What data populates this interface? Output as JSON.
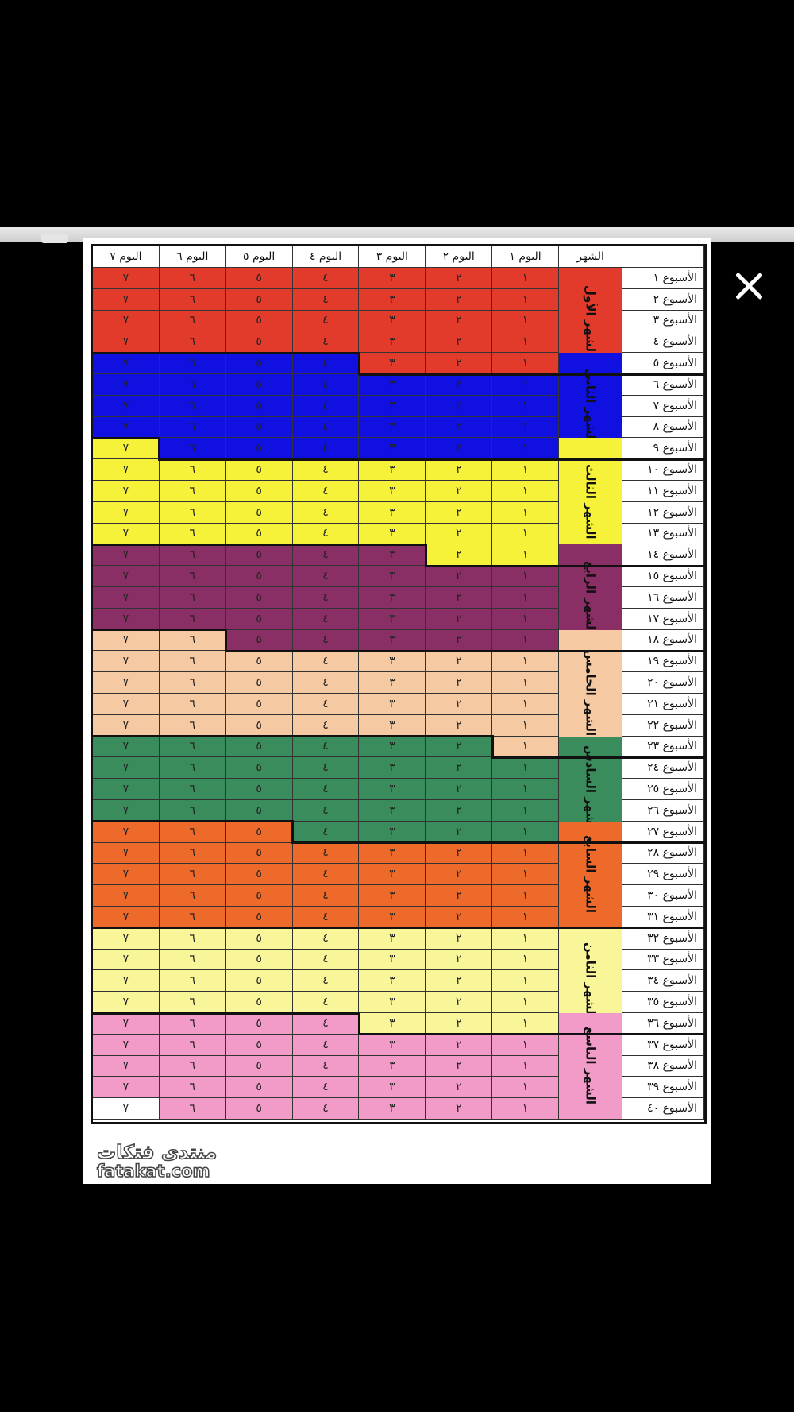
{
  "header": {
    "week_col": "",
    "month_col": "الشهر",
    "days": [
      "اليوم ١",
      "اليوم ٢",
      "اليوم ٣",
      "اليوم ٤",
      "اليوم ٥",
      "اليوم ٦",
      "اليوم ٧"
    ]
  },
  "day_values": [
    "١",
    "٢",
    "٣",
    "٤",
    "٥",
    "٦",
    "٧"
  ],
  "weeks": [
    "الأسبوع ١",
    "الأسبوع ٢",
    "الأسبوع ٣",
    "الأسبوع ٤",
    "الأسبوع ٥",
    "الأسبوع ٦",
    "الأسبوع ٧",
    "الأسبوع ٨",
    "الأسبوع ٩",
    "الأسبوع ١٠",
    "الأسبوع ١١",
    "الأسبوع ١٢",
    "الأسبوع ١٣",
    "الأسبوع ١٤",
    "الأسبوع ١٥",
    "الأسبوع ١٦",
    "الأسبوع ١٧",
    "الأسبوع ١٨",
    "الأسبوع ١٩",
    "الأسبوع ٢٠",
    "الأسبوع ٢١",
    "الأسبوع ٢٢",
    "الأسبوع ٢٣",
    "الأسبوع ٢٤",
    "الأسبوع ٢٥",
    "الأسبوع ٢٦",
    "الأسبوع ٢٧",
    "الأسبوع ٢٨",
    "الأسبوع ٢٩",
    "الأسبوع ٣٠",
    "الأسبوع ٣١",
    "الأسبوع ٣٢",
    "الأسبوع ٣٣",
    "الأسبوع ٣٤",
    "الأسبوع ٣٥",
    "الأسبوع ٣٦",
    "الأسبوع ٣٧",
    "الأسبوع ٣٨",
    "الأسبوع ٣٩",
    "الأسبوع ٤٠"
  ],
  "months": [
    {
      "label": "الشهر الأول",
      "color": "#e23b2c",
      "start_week": 1,
      "end_week": 5,
      "start_day": 1,
      "end_day": 3
    },
    {
      "label": "الشهر الثاني",
      "color": "#1010e0",
      "start_week": 5,
      "end_week": 9,
      "start_day": 4,
      "end_day": 6
    },
    {
      "label": "الشهر الثالث",
      "color": "#f6f23a",
      "start_week": 9,
      "end_week": 14,
      "start_day": 7,
      "end_day": 2
    },
    {
      "label": "الشهر الرابع",
      "color": "#8a2e66",
      "start_week": 14,
      "end_week": 18,
      "start_day": 3,
      "end_day": 5
    },
    {
      "label": "الشهر الخامس",
      "color": "#f5c9a2",
      "start_week": 18,
      "end_week": 23,
      "start_day": 6,
      "end_day": 1
    },
    {
      "label": "الشهر السادس",
      "color": "#3a8c5c",
      "start_week": 23,
      "end_week": 27,
      "start_day": 2,
      "end_day": 4
    },
    {
      "label": "الشهر السابع",
      "color": "#ee6a2a",
      "start_week": 27,
      "end_week": 31,
      "start_day": 5,
      "end_day": 7
    },
    {
      "label": "الشهر الثامن",
      "color": "#f9f69a",
      "start_week": 32,
      "end_week": 36,
      "start_day": 1,
      "end_day": 3
    },
    {
      "label": "الشهر التاسع",
      "color": "#f29ac8",
      "start_week": 36,
      "end_week": 40,
      "start_day": 4,
      "end_day": 6
    }
  ],
  "blank_color": "#ffffff",
  "logo": {
    "arabic": "منتدى فتكات",
    "latin": "fatakat.com"
  },
  "close_icon": "close-icon"
}
